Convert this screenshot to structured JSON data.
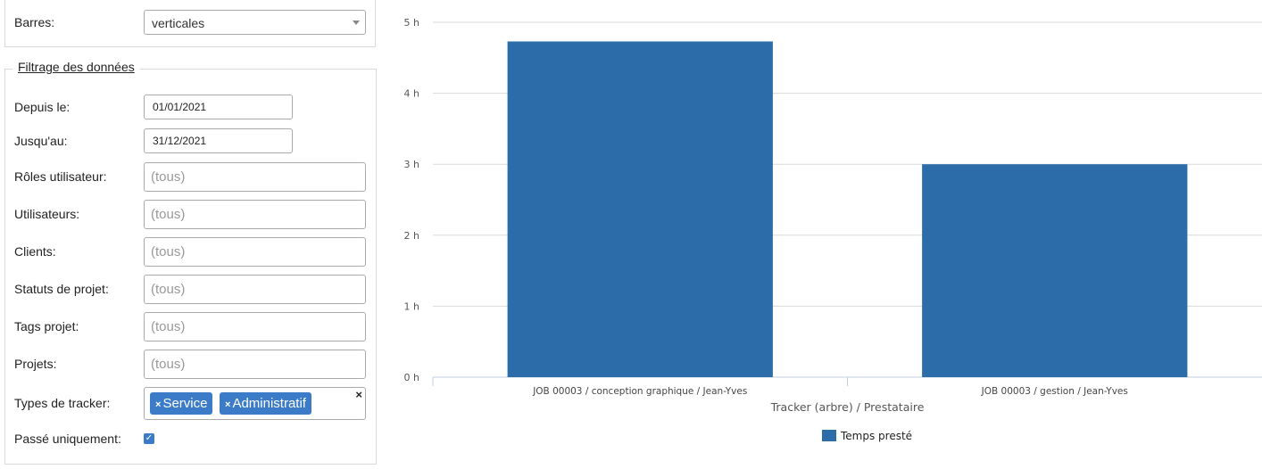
{
  "display": {
    "bars_label": "Barres:",
    "bars_value": "verticales"
  },
  "filters": {
    "legend": "Filtrage des données",
    "since_label": "Depuis le:",
    "since_value": "01/01/2021",
    "until_label": "Jusqu'au:",
    "until_value": "31/12/2021",
    "roles_label": "Rôles utilisateur:",
    "users_label": "Utilisateurs:",
    "clients_label": "Clients:",
    "project_status_label": "Statuts de projet:",
    "project_tags_label": "Tags projet:",
    "projects_label": "Projets:",
    "placeholder_all": "(tous)",
    "tracker_types_label": "Types de tracker:",
    "tracker_types": [
      "Service",
      "Administratif"
    ],
    "tag_remove_glyph": "×",
    "clear_glyph": "×",
    "past_only_label": "Passé uniquement:",
    "past_only_checked": true,
    "check_glyph": "✓"
  },
  "icons": {
    "dropdown": "chevron-down-icon",
    "remove": "close-icon",
    "checkbox": "check-icon"
  },
  "colors": {
    "bar": "#2c6ca8",
    "tag": "#3b7bc8",
    "grid": "#d9d9d9"
  },
  "chart_data": {
    "type": "bar",
    "categories": [
      "JOB 00003 / conception graphique / Jean-Yves",
      "JOB 00003 / gestion / Jean-Yves"
    ],
    "series": [
      {
        "name": "Temps presté",
        "values": [
          4.73,
          3.0
        ]
      }
    ],
    "xlabel": "Tracker (arbre) / Prestataire",
    "ylabel": "",
    "ylim": [
      0,
      5
    ],
    "yticks": [
      "0 h",
      "1 h",
      "2 h",
      "3 h",
      "4 h",
      "5 h"
    ],
    "grid": true,
    "legend_position": "bottom"
  }
}
